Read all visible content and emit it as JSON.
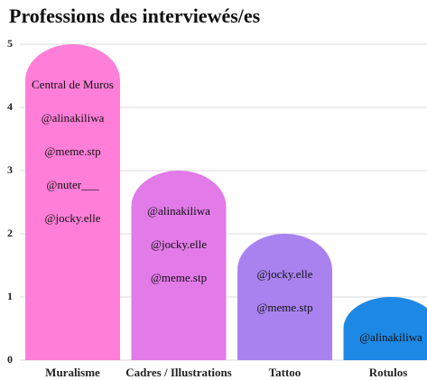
{
  "chart_data": {
    "type": "bar",
    "title": "Professions des interviewés/es",
    "categories": [
      "Muralisme",
      "Cadres / Illustrations",
      "Tattoo",
      "Rotulos"
    ],
    "values": [
      5,
      3,
      2,
      1
    ],
    "colors": [
      "#ff7fd8",
      "#e27ae8",
      "#a982ef",
      "#1e88e5"
    ],
    "bar_labels": [
      [
        "Central de Muros",
        "@alinakiliwa",
        "@meme.stp",
        "@nuter___",
        "@jocky.elle"
      ],
      [
        "@alinakiliwa",
        "@jocky.elle",
        "@meme.stp"
      ],
      [
        "@jocky.elle",
        "@meme.stp"
      ],
      [
        "@alinakiliwa"
      ]
    ],
    "ylim": [
      0,
      5
    ],
    "yticks": [
      0,
      1,
      2,
      3,
      4,
      5
    ],
    "grid": true
  }
}
